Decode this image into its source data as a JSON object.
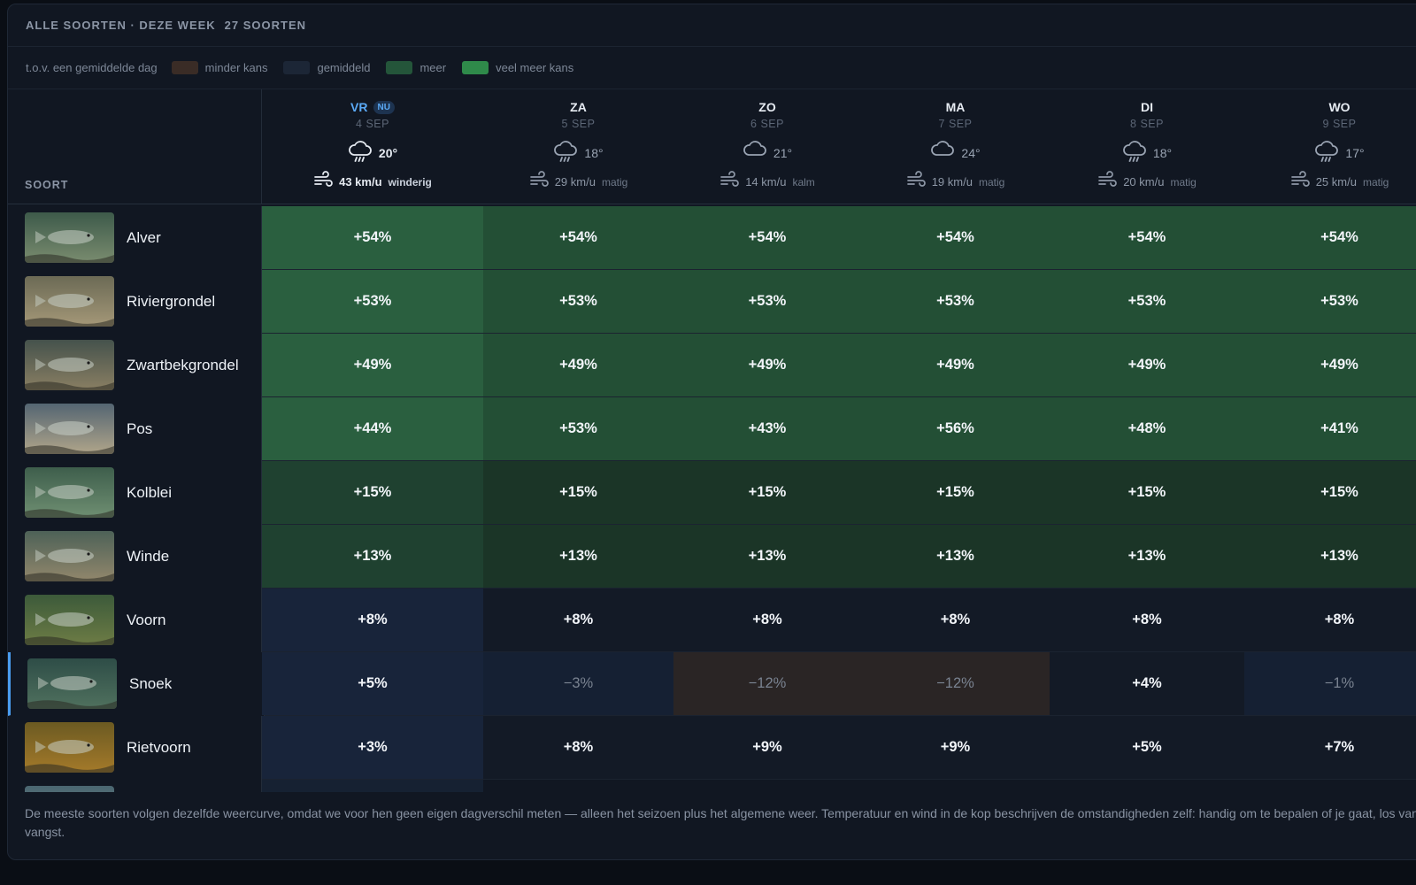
{
  "topbar": {
    "title": "ALLE SOORTEN · DEZE WEEK",
    "count": "27 SOORTEN"
  },
  "legend": {
    "intro": "t.o.v. een gemiddelde dag",
    "items": [
      {
        "label": "minder kans",
        "color": "#3a2c26"
      },
      {
        "label": "gemiddeld",
        "color": "#1c2636"
      },
      {
        "label": "meer",
        "color": "#24553a"
      },
      {
        "label": "veel meer kans",
        "color": "#2f8a4a"
      }
    ]
  },
  "column_header": {
    "soort": "SOORT"
  },
  "days": [
    {
      "day": "VR",
      "badge": "NU",
      "date": "4 SEP",
      "weather": "rain",
      "temp": "20°",
      "wind": "43 km/u",
      "wind_desc": "winderig"
    },
    {
      "day": "ZA",
      "badge": "",
      "date": "5 SEP",
      "weather": "rain",
      "temp": "18°",
      "wind": "29 km/u",
      "wind_desc": "matig"
    },
    {
      "day": "ZO",
      "badge": "",
      "date": "6 SEP",
      "weather": "cloud",
      "temp": "21°",
      "wind": "14 km/u",
      "wind_desc": "kalm"
    },
    {
      "day": "MA",
      "badge": "",
      "date": "7 SEP",
      "weather": "cloud",
      "temp": "24°",
      "wind": "19 km/u",
      "wind_desc": "matig"
    },
    {
      "day": "DI",
      "badge": "",
      "date": "8 SEP",
      "weather": "rain",
      "temp": "18°",
      "wind": "20 km/u",
      "wind_desc": "matig"
    },
    {
      "day": "WO",
      "badge": "",
      "date": "9 SEP",
      "weather": "rain",
      "temp": "17°",
      "wind": "25 km/u",
      "wind_desc": "matig"
    }
  ],
  "species": [
    {
      "name": "Alver",
      "values": [
        "+54%",
        "+54%",
        "+54%",
        "+54%",
        "+54%",
        "+54%"
      ]
    },
    {
      "name": "Riviergrondel",
      "values": [
        "+53%",
        "+53%",
        "+53%",
        "+53%",
        "+53%",
        "+53%"
      ]
    },
    {
      "name": "Zwartbekgrondel",
      "values": [
        "+49%",
        "+49%",
        "+49%",
        "+49%",
        "+49%",
        "+49%"
      ]
    },
    {
      "name": "Pos",
      "values": [
        "+44%",
        "+53%",
        "+43%",
        "+56%",
        "+48%",
        "+41%"
      ]
    },
    {
      "name": "Kolblei",
      "values": [
        "+15%",
        "+15%",
        "+15%",
        "+15%",
        "+15%",
        "+15%"
      ]
    },
    {
      "name": "Winde",
      "values": [
        "+13%",
        "+13%",
        "+13%",
        "+13%",
        "+13%",
        "+13%"
      ]
    },
    {
      "name": "Voorn",
      "values": [
        "+8%",
        "+8%",
        "+8%",
        "+8%",
        "+8%",
        "+8%"
      ]
    },
    {
      "name": "Snoek",
      "values": [
        "+5%",
        "−3%",
        "−12%",
        "−12%",
        "+4%",
        "−1%"
      ],
      "selected": true
    },
    {
      "name": "Rietvoorn",
      "values": [
        "+3%",
        "+8%",
        "+9%",
        "+9%",
        "+5%",
        "+7%"
      ]
    },
    {
      "name": "",
      "values": [
        "",
        "",
        "",
        "",
        "",
        ""
      ]
    }
  ],
  "footnote": "De meeste soorten volgen dezelfde weercurve, omdat we voor hen geen eigen dagverschil meten — alleen het seizoen plus het algemene weer. Temperatuur en wind in de kop beschrijven de omstandigheden zelf: handig om te bepalen of je gaat, los van de vangst."
}
